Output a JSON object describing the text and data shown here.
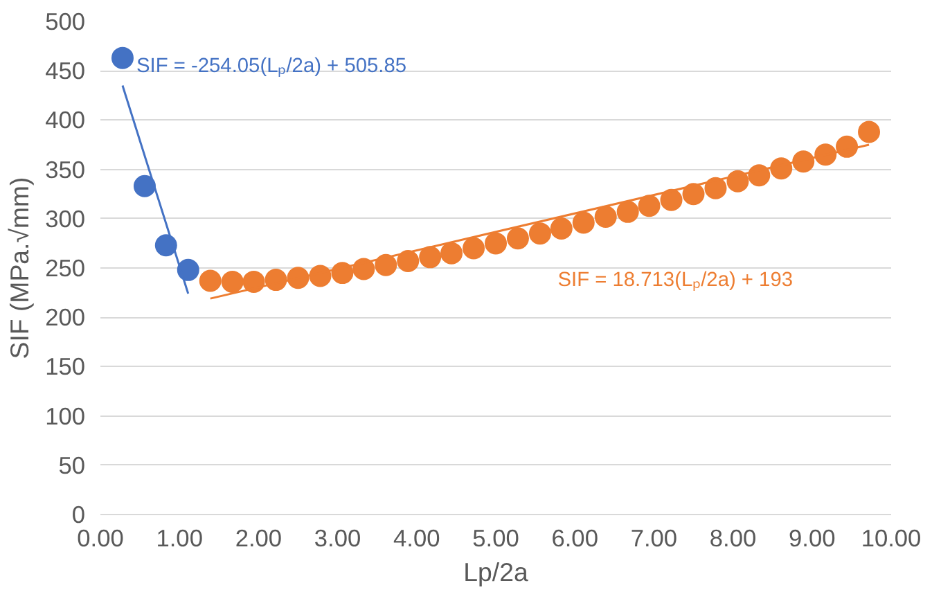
{
  "chart_data": {
    "type": "scatter",
    "xlabel": "Lp/2a",
    "ylabel": "SIF (MPa.√mm)",
    "xlim": [
      0,
      10
    ],
    "xticks": [
      {
        "value": 0,
        "label": "0.00"
      },
      {
        "value": 1,
        "label": "1.00"
      },
      {
        "value": 2,
        "label": "2.00"
      },
      {
        "value": 3,
        "label": "3.00"
      },
      {
        "value": 4,
        "label": "4.00"
      },
      {
        "value": 5,
        "label": "5.00"
      },
      {
        "value": 6,
        "label": "6.00"
      },
      {
        "value": 7,
        "label": "7.00"
      },
      {
        "value": 8,
        "label": "8.00"
      },
      {
        "value": 9,
        "label": "9.00"
      },
      {
        "value": 10,
        "label": "10.00"
      }
    ],
    "ylim": [
      0,
      500
    ],
    "yticks": [
      0,
      50,
      100,
      150,
      200,
      250,
      300,
      350,
      400,
      450,
      500
    ],
    "grid": "y",
    "marker": "circle",
    "series": [
      {
        "color": "#4472c4",
        "x": [
          0.28,
          0.56,
          0.83,
          1.11
        ],
        "values": [
          463,
          333,
          273,
          248
        ]
      },
      {
        "color": "#ed7d31",
        "x": [
          1.39,
          1.67,
          1.94,
          2.22,
          2.5,
          2.78,
          3.06,
          3.33,
          3.61,
          3.89,
          4.17,
          4.44,
          4.72,
          5.0,
          5.28,
          5.56,
          5.83,
          6.11,
          6.39,
          6.67,
          6.94,
          7.22,
          7.5,
          7.78,
          8.06,
          8.33,
          8.61,
          8.89,
          9.17,
          9.44,
          9.72
        ],
        "values": [
          237,
          236,
          236,
          238,
          240,
          242,
          245,
          249,
          253,
          257,
          261,
          265,
          270,
          275,
          280,
          285,
          290,
          296,
          302,
          307,
          313,
          319,
          325,
          331,
          338,
          344,
          351,
          358,
          365,
          373,
          388
        ]
      },
      {
        "type": "line",
        "marker": "none",
        "color": "#4472c4",
        "x": [
          0.28,
          1.11
        ],
        "values": [
          435,
          224
        ]
      },
      {
        "type": "line",
        "marker": "none",
        "color": "#ed7d31",
        "x": [
          1.39,
          9.72
        ],
        "values": [
          219,
          375
        ]
      }
    ],
    "annotations": [
      "SIF = -254.05(Lₚ/2a) + 505.85",
      "SIF = 18.713(Lₚ/2a) + 193"
    ]
  }
}
